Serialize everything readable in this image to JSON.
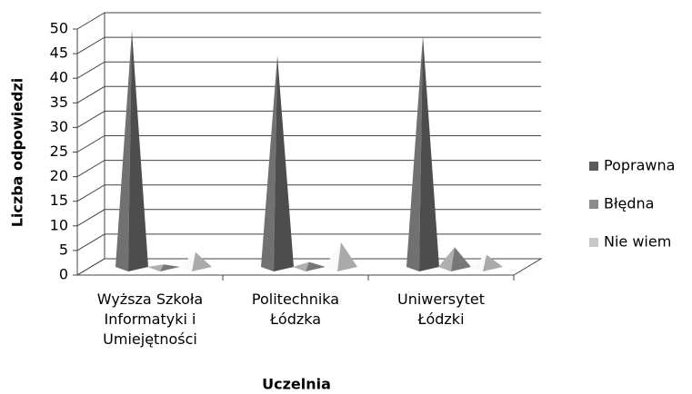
{
  "chart_data": {
    "type": "pyramid3d",
    "x_label": "Uczelnia",
    "y_label": "Liczba odpowiedzi",
    "categories": [
      "Wyższa Szkoła Informatyki i Umiejętności",
      "Politechnika Łódzka",
      "Uniwersytet Łódzki"
    ],
    "series": [
      {
        "name": "Poprawna",
        "color": "#5a5a5a",
        "values": [
          48,
          43,
          47
        ]
      },
      {
        "name": "Błędna",
        "color": "#8c8c8c",
        "values": [
          0.5,
          1,
          4
        ]
      },
      {
        "name": "Nie wiem",
        "color": "#c8c8c8",
        "values": [
          3,
          5,
          2.5
        ]
      }
    ],
    "ylim": [
      0,
      50
    ],
    "yticks": [
      0,
      5,
      10,
      15,
      20,
      25,
      30,
      35,
      40,
      45,
      50
    ],
    "grid": true,
    "legend": "right"
  }
}
